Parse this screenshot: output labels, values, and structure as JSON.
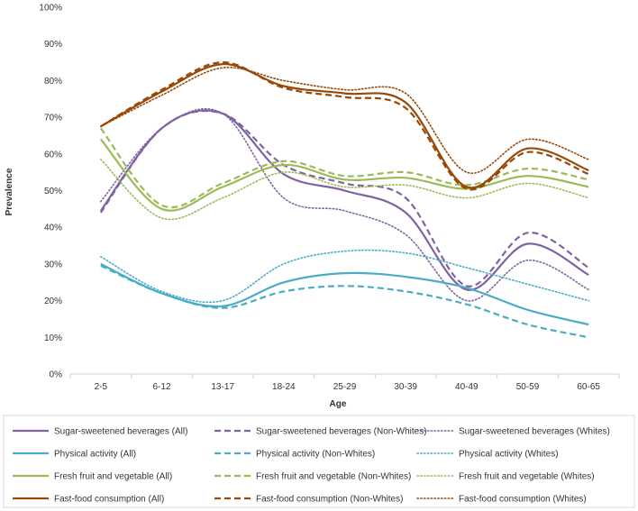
{
  "chart_data": {
    "type": "line",
    "title": "",
    "xlabel": "Age",
    "ylabel": "Prevalence",
    "categories": [
      "2-5",
      "6-12",
      "13-17",
      "18-24",
      "25-29",
      "30-39",
      "40-49",
      "50-59",
      "60-65"
    ],
    "ylim": [
      0,
      100
    ],
    "yticks": [
      0,
      10,
      20,
      30,
      40,
      50,
      60,
      70,
      80,
      90,
      100
    ],
    "ytick_labels": [
      "0%",
      "10%",
      "20%",
      "30%",
      "40%",
      "50%",
      "60%",
      "70%",
      "80%",
      "90%",
      "100%"
    ],
    "grid": false,
    "legend_position": "bottom",
    "series": [
      {
        "name": "Sugar-sweetened beverages (All)",
        "values": [
          44.5,
          67,
          71,
          54.5,
          50,
          44,
          23,
          35.5,
          27
        ],
        "color": "#8064a2",
        "style": "solid"
      },
      {
        "name": "Sugar-sweetened beverages (Non-Whites)",
        "values": [
          44,
          67,
          71,
          57,
          52,
          48,
          24,
          38.5,
          29
        ],
        "color": "#8064a2",
        "style": "dashed"
      },
      {
        "name": "Sugar-sweetened beverages (Whites)",
        "values": [
          47,
          67,
          71,
          48,
          44.5,
          38,
          20,
          31,
          23
        ],
        "color": "#8064a2",
        "style": "dotted"
      },
      {
        "name": "Physical activity (All)",
        "values": [
          30,
          22,
          18.5,
          25,
          27.5,
          26.5,
          23.5,
          17.5,
          13.5
        ],
        "color": "#4bacc6",
        "style": "solid"
      },
      {
        "name": "Physical activity (Non-Whites)",
        "values": [
          29.5,
          22,
          18,
          22.5,
          24,
          22.5,
          19,
          13.5,
          10
        ],
        "color": "#4bacc6",
        "style": "dashed"
      },
      {
        "name": "Physical activity (Whites)",
        "values": [
          32,
          22.5,
          20,
          30,
          33.5,
          33,
          29,
          24.5,
          20
        ],
        "color": "#4bacc6",
        "style": "dotted"
      },
      {
        "name": "Fresh fruit and vegetable (All)",
        "values": [
          64,
          45,
          51,
          57,
          53,
          53.5,
          50.5,
          54,
          51
        ],
        "color": "#9bbb59",
        "style": "solid"
      },
      {
        "name": "Fresh fruit and vegetable (Non-Whites)",
        "values": [
          67,
          46,
          52,
          58,
          54,
          55,
          51.5,
          56,
          53
        ],
        "color": "#9bbb59",
        "style": "dashed"
      },
      {
        "name": "Fresh fruit and vegetable (Whites)",
        "values": [
          58.5,
          42.5,
          48,
          55,
          51,
          51.5,
          48,
          52,
          48
        ],
        "color": "#9bbb59",
        "style": "dotted"
      },
      {
        "name": "Fast-food consumption (All)",
        "values": [
          67.5,
          77,
          84.5,
          78.5,
          76.5,
          74,
          51,
          61.5,
          55.5
        ],
        "color": "#984807",
        "style": "solid"
      },
      {
        "name": "Fast-food consumption (Non-Whites)",
        "values": [
          67.5,
          77.5,
          85,
          78,
          75.5,
          72.5,
          50.5,
          60.5,
          54.5
        ],
        "color": "#984807",
        "style": "dashed"
      },
      {
        "name": "Fast-food consumption (Whites)",
        "values": [
          67.5,
          76,
          83.5,
          80,
          77.5,
          76.5,
          55,
          64,
          58.5
        ],
        "color": "#984807",
        "style": "dotted"
      }
    ]
  }
}
